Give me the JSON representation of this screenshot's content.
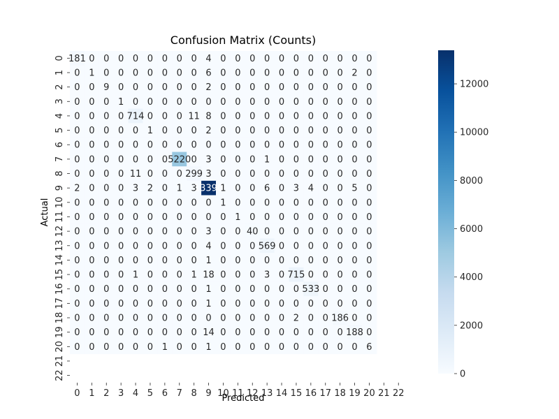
{
  "chart_data": {
    "type": "heatmap",
    "title": "Confusion Matrix (Counts)",
    "xlabel": "Predicted",
    "ylabel": "Actual",
    "x_categories": [
      "0",
      "1",
      "2",
      "3",
      "4",
      "5",
      "6",
      "7",
      "8",
      "9",
      "10",
      "11",
      "12",
      "13",
      "14",
      "15",
      "16",
      "17",
      "18",
      "19",
      "20",
      "21",
      "22"
    ],
    "y_categories": [
      "0",
      "1",
      "2",
      "3",
      "4",
      "5",
      "6",
      "7",
      "8",
      "9",
      "10",
      "11",
      "12",
      "13",
      "14",
      "15",
      "16",
      "17",
      "18",
      "19",
      "20",
      "21",
      "22"
    ],
    "rows_with_data": 21,
    "cols_with_data": 21,
    "matrix": [
      [
        181,
        0,
        0,
        0,
        0,
        0,
        0,
        0,
        0,
        4,
        0,
        0,
        0,
        0,
        0,
        0,
        0,
        0,
        0,
        0,
        0
      ],
      [
        0,
        1,
        0,
        0,
        0,
        0,
        0,
        0,
        0,
        6,
        0,
        0,
        0,
        0,
        0,
        0,
        0,
        0,
        0,
        2,
        0
      ],
      [
        0,
        0,
        9,
        0,
        0,
        0,
        0,
        0,
        0,
        2,
        0,
        0,
        0,
        0,
        0,
        0,
        0,
        0,
        0,
        0,
        0
      ],
      [
        0,
        0,
        0,
        1,
        0,
        0,
        0,
        0,
        0,
        0,
        0,
        0,
        0,
        0,
        0,
        0,
        0,
        0,
        0,
        0,
        0
      ],
      [
        0,
        0,
        0,
        0,
        714,
        0,
        0,
        0,
        11,
        8,
        0,
        0,
        0,
        0,
        0,
        0,
        0,
        0,
        0,
        0,
        0
      ],
      [
        0,
        0,
        0,
        0,
        0,
        1,
        0,
        0,
        0,
        2,
        0,
        0,
        0,
        0,
        0,
        0,
        0,
        0,
        0,
        0,
        0
      ],
      [
        0,
        0,
        0,
        0,
        0,
        0,
        0,
        0,
        0,
        0,
        0,
        0,
        0,
        0,
        0,
        0,
        0,
        0,
        0,
        0,
        0
      ],
      [
        0,
        0,
        0,
        0,
        0,
        0,
        0,
        5220,
        0,
        3,
        0,
        0,
        0,
        1,
        0,
        0,
        0,
        0,
        0,
        0,
        0
      ],
      [
        0,
        0,
        0,
        0,
        11,
        0,
        0,
        0,
        299,
        3,
        0,
        0,
        0,
        0,
        0,
        0,
        0,
        0,
        0,
        0,
        0
      ],
      [
        2,
        0,
        0,
        0,
        3,
        2,
        0,
        1,
        3,
        13390,
        1,
        0,
        0,
        6,
        0,
        3,
        4,
        0,
        0,
        5,
        0
      ],
      [
        0,
        0,
        0,
        0,
        0,
        0,
        0,
        0,
        0,
        0,
        1,
        0,
        0,
        0,
        0,
        0,
        0,
        0,
        0,
        0,
        0
      ],
      [
        0,
        0,
        0,
        0,
        0,
        0,
        0,
        0,
        0,
        0,
        0,
        1,
        0,
        0,
        0,
        0,
        0,
        0,
        0,
        0,
        0
      ],
      [
        0,
        0,
        0,
        0,
        0,
        0,
        0,
        0,
        0,
        3,
        0,
        0,
        40,
        0,
        0,
        0,
        0,
        0,
        0,
        0,
        0
      ],
      [
        0,
        0,
        0,
        0,
        0,
        0,
        0,
        0,
        0,
        4,
        0,
        0,
        0,
        569,
        0,
        0,
        0,
        0,
        0,
        0,
        0
      ],
      [
        0,
        0,
        0,
        0,
        0,
        0,
        0,
        0,
        0,
        1,
        0,
        0,
        0,
        0,
        0,
        0,
        0,
        0,
        0,
        0,
        0
      ],
      [
        0,
        0,
        0,
        0,
        1,
        0,
        0,
        0,
        1,
        18,
        0,
        0,
        0,
        3,
        0,
        715,
        0,
        0,
        0,
        0,
        0
      ],
      [
        0,
        0,
        0,
        0,
        0,
        0,
        0,
        0,
        0,
        1,
        0,
        0,
        0,
        0,
        0,
        0,
        533,
        0,
        0,
        0,
        0
      ],
      [
        0,
        0,
        0,
        0,
        0,
        0,
        0,
        0,
        0,
        1,
        0,
        0,
        0,
        0,
        0,
        0,
        0,
        0,
        0,
        0,
        0
      ],
      [
        0,
        0,
        0,
        0,
        0,
        0,
        0,
        0,
        0,
        0,
        0,
        0,
        0,
        0,
        0,
        2,
        0,
        0,
        186,
        0,
        0
      ],
      [
        0,
        0,
        0,
        0,
        0,
        0,
        0,
        0,
        0,
        14,
        0,
        0,
        0,
        0,
        0,
        0,
        0,
        0,
        0,
        188,
        0
      ],
      [
        0,
        0,
        0,
        0,
        0,
        0,
        1,
        0,
        0,
        1,
        0,
        0,
        0,
        0,
        0,
        0,
        0,
        0,
        0,
        0,
        6
      ]
    ],
    "colormap": "Blues",
    "colorbar": {
      "vmin": 0,
      "vmax": 13390,
      "ticks": [
        0,
        2000,
        4000,
        6000,
        8000,
        10000,
        12000
      ]
    },
    "colors": {
      "low": "#f7fbff",
      "high": "#08306b",
      "text_dark": "#262626",
      "text_light": "#ffffff"
    }
  }
}
